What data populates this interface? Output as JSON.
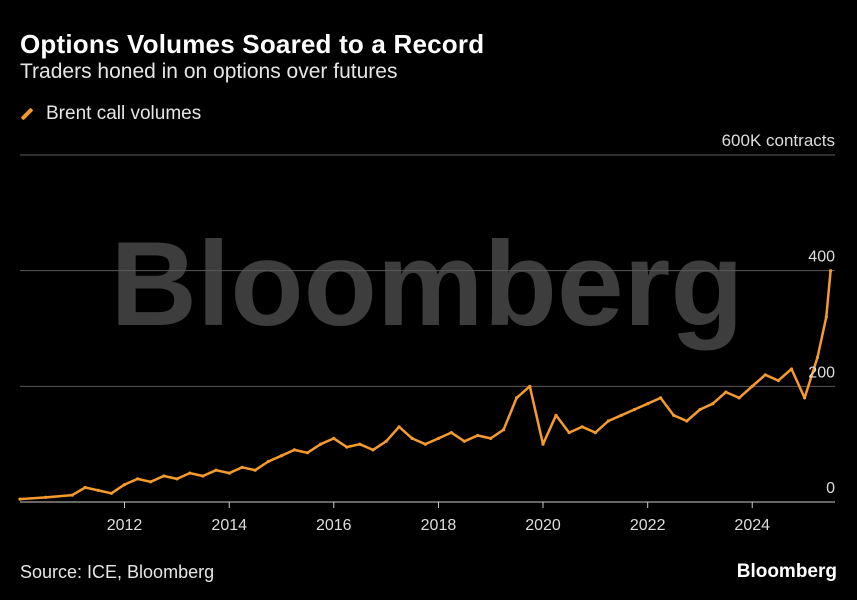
{
  "header": {
    "title": "Options Volumes Soared to a Record",
    "subtitle": "Traders honed in on options over futures"
  },
  "legend": {
    "label": "Brent call volumes",
    "color": "#f59b2c"
  },
  "watermark": "Bloomberg",
  "footer": {
    "source": "Source: ICE, Bloomberg",
    "brand": "Bloomberg"
  },
  "chart_data": {
    "type": "line",
    "title": "Options Volumes Soared to a Record",
    "subtitle": "Traders honed in on options over futures",
    "ylabel": "600K contracts",
    "ylim": [
      0,
      600
    ],
    "yticks": [
      0,
      200,
      400,
      600
    ],
    "ytick_labels": [
      "0",
      "200",
      "400",
      "600K contracts"
    ],
    "xlim": [
      "2010-01",
      "2025-08"
    ],
    "xticks": [
      "2012",
      "2014",
      "2016",
      "2018",
      "2020",
      "2022",
      "2024"
    ],
    "grid": true,
    "legend_position": "top-left",
    "series": [
      {
        "name": "Brent call volumes",
        "color": "#f59b2c",
        "x": [
          "2010-01",
          "2010-07",
          "2011-01",
          "2011-04",
          "2011-07",
          "2011-10",
          "2012-01",
          "2012-04",
          "2012-07",
          "2012-10",
          "2013-01",
          "2013-04",
          "2013-07",
          "2013-10",
          "2014-01",
          "2014-04",
          "2014-07",
          "2014-10",
          "2015-01",
          "2015-04",
          "2015-07",
          "2015-10",
          "2016-01",
          "2016-04",
          "2016-07",
          "2016-10",
          "2017-01",
          "2017-04",
          "2017-07",
          "2017-10",
          "2018-01",
          "2018-04",
          "2018-07",
          "2018-10",
          "2019-01",
          "2019-04",
          "2019-07",
          "2019-10",
          "2020-01",
          "2020-04",
          "2020-07",
          "2020-10",
          "2021-01",
          "2021-04",
          "2021-07",
          "2021-10",
          "2022-01",
          "2022-04",
          "2022-07",
          "2022-10",
          "2023-01",
          "2023-04",
          "2023-07",
          "2023-10",
          "2024-01",
          "2024-04",
          "2024-07",
          "2024-10",
          "2025-01",
          "2025-04",
          "2025-06",
          "2025-07"
        ],
        "values": [
          5,
          8,
          12,
          25,
          20,
          15,
          30,
          40,
          35,
          45,
          40,
          50,
          45,
          55,
          50,
          60,
          55,
          70,
          80,
          90,
          85,
          100,
          110,
          95,
          100,
          90,
          105,
          130,
          110,
          100,
          110,
          120,
          105,
          115,
          110,
          125,
          180,
          200,
          100,
          150,
          120,
          130,
          120,
          140,
          150,
          160,
          170,
          180,
          150,
          140,
          160,
          170,
          190,
          180,
          200,
          220,
          210,
          230,
          180,
          250,
          320,
          400
        ]
      }
    ]
  }
}
